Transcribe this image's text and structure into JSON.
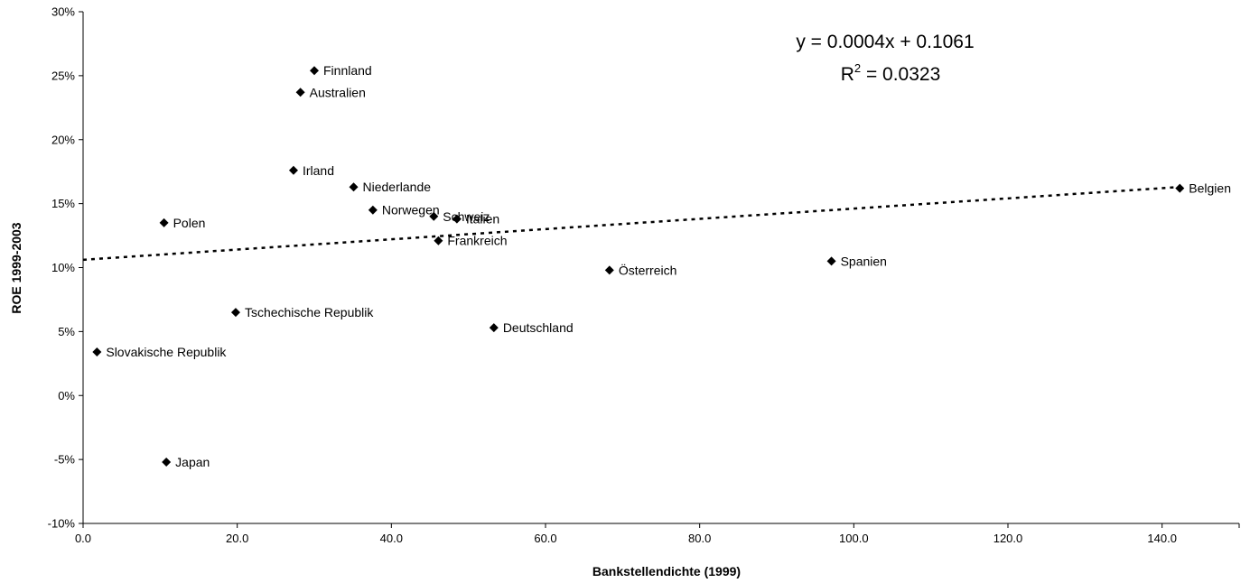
{
  "chart_data": {
    "type": "scatter",
    "xlabel": "Bankstellendichte (1999)",
    "ylabel": "ROE 1999-2003",
    "xlim": [
      0,
      150
    ],
    "ylim": [
      -0.1,
      0.3
    ],
    "x_ticks": [
      0,
      20,
      40,
      60,
      80,
      100,
      120,
      140
    ],
    "x_tick_labels": [
      "0.0",
      "20.0",
      "40.0",
      "60.0",
      "80.0",
      "100.0",
      "120.0",
      "140.0"
    ],
    "y_ticks": [
      -0.1,
      -0.05,
      0.0,
      0.05,
      0.1,
      0.15,
      0.2,
      0.25,
      0.3
    ],
    "y_tick_labels": [
      "-10%",
      "-5%",
      "0%",
      "5%",
      "10%",
      "15%",
      "20%",
      "25%",
      "30%"
    ],
    "grid": false,
    "marker": "diamond",
    "marker_color": "#000000",
    "points": [
      {
        "label": "Finnland",
        "x": 30.0,
        "y": 0.254
      },
      {
        "label": "Australien",
        "x": 28.2,
        "y": 0.237
      },
      {
        "label": "Irland",
        "x": 27.3,
        "y": 0.176
      },
      {
        "label": "Niederlande",
        "x": 35.1,
        "y": 0.163
      },
      {
        "label": "Norwegen",
        "x": 37.6,
        "y": 0.145
      },
      {
        "label": "Schweiz",
        "x": 45.5,
        "y": 0.14
      },
      {
        "label": "Italien",
        "x": 48.5,
        "y": 0.138
      },
      {
        "label": "Frankreich",
        "x": 46.1,
        "y": 0.121
      },
      {
        "label": "Polen",
        "x": 10.5,
        "y": 0.135
      },
      {
        "label": "Belgien",
        "x": 142.3,
        "y": 0.162
      },
      {
        "label": "Österreich",
        "x": 68.3,
        "y": 0.098
      },
      {
        "label": "Spanien",
        "x": 97.1,
        "y": 0.105
      },
      {
        "label": "Tschechische Republik",
        "x": 19.8,
        "y": 0.065
      },
      {
        "label": "Deutschland",
        "x": 53.3,
        "y": 0.053
      },
      {
        "label": "Slovakische Republik",
        "x": 1.8,
        "y": 0.034
      },
      {
        "label": "Japan",
        "x": 10.8,
        "y": -0.052
      }
    ],
    "trendline": {
      "type": "linear",
      "slope": 0.0004,
      "intercept": 0.1061,
      "x_range": [
        0,
        142.3
      ],
      "style": "dotted",
      "equation_text": "y = 0.0004x + 0.1061",
      "r2_label": "R",
      "r2_sup": "2",
      "r2_value_text": " = 0.0323"
    }
  }
}
